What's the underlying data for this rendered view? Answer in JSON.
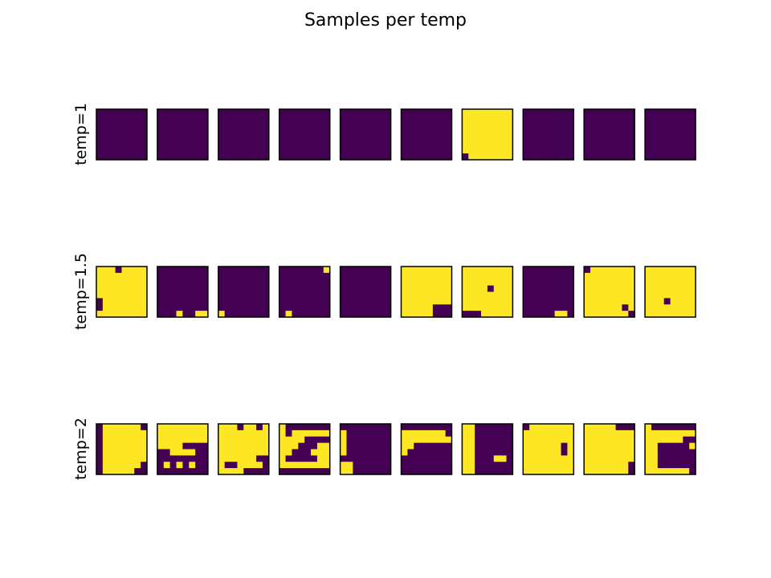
{
  "chart_data": {
    "type": "heatmap",
    "title": "Samples per temp",
    "grid_size": 8,
    "colors": {
      "0": "#440154",
      "1": "#fde725",
      "frame": "#000000"
    },
    "rows": [
      {
        "label": "temp=1",
        "samples": [
          [
            "00000000",
            "00000000",
            "00000000",
            "00000000",
            "00000000",
            "00000000",
            "00000000",
            "00000000"
          ],
          [
            "00000000",
            "00000000",
            "00000000",
            "00000000",
            "00000000",
            "00000000",
            "00000000",
            "00000000"
          ],
          [
            "00000000",
            "00000000",
            "00000000",
            "00000000",
            "00000000",
            "00000000",
            "00000000",
            "00000000"
          ],
          [
            "00000000",
            "00000000",
            "00000000",
            "00000000",
            "00000000",
            "00000000",
            "00000000",
            "00000000"
          ],
          [
            "00000000",
            "00000000",
            "00000000",
            "00000000",
            "00000000",
            "00000000",
            "00000000",
            "00000000"
          ],
          [
            "00000000",
            "00000000",
            "00000000",
            "00000000",
            "00000000",
            "00000000",
            "00000000",
            "00000000"
          ],
          [
            "11111111",
            "11111111",
            "11111111",
            "11111111",
            "11111111",
            "11111111",
            "11111111",
            "01111111"
          ],
          [
            "00000000",
            "00000000",
            "00000000",
            "00000000",
            "00000000",
            "00000000",
            "00000000",
            "00000000"
          ],
          [
            "00000000",
            "00000000",
            "00000000",
            "00000000",
            "00000000",
            "00000000",
            "00000000",
            "00000000"
          ],
          [
            "00000000",
            "00000000",
            "00000000",
            "00000000",
            "00000000",
            "00000000",
            "00000000",
            "00000000"
          ]
        ]
      },
      {
        "label": "temp=1.5",
        "samples": [
          [
            "11101111",
            "11111111",
            "11111111",
            "11111111",
            "11111111",
            "01111111",
            "01111111",
            "11111111"
          ],
          [
            "00000000",
            "00000000",
            "00000000",
            "00000000",
            "00000000",
            "00000000",
            "00000000",
            "00010011"
          ],
          [
            "00000000",
            "00000000",
            "00000000",
            "00000000",
            "00000000",
            "00000000",
            "00000000",
            "10000000"
          ],
          [
            "00000001",
            "00000000",
            "00000000",
            "00000000",
            "00000000",
            "00000000",
            "00000000",
            "01000000"
          ],
          [
            "00000000",
            "00000000",
            "00000000",
            "00000000",
            "00000000",
            "00000000",
            "00000000",
            "00000000"
          ],
          [
            "11111111",
            "11111111",
            "11111111",
            "11111111",
            "11111111",
            "11111111",
            "11111000",
            "11111000"
          ],
          [
            "11111111",
            "11111111",
            "11111111",
            "11110111",
            "11111111",
            "11111111",
            "11111111",
            "00011111"
          ],
          [
            "00000000",
            "00000000",
            "00000000",
            "00000000",
            "00000000",
            "00000000",
            "00000000",
            "00000110"
          ],
          [
            "01111111",
            "11111111",
            "11111111",
            "11111111",
            "11111111",
            "11111111",
            "11111101",
            "11111110"
          ],
          [
            "11111111",
            "11111111",
            "11111111",
            "11111111",
            "11111111",
            "11101111",
            "11111111",
            "11111111"
          ]
        ]
      },
      {
        "label": "temp=2",
        "samples": [
          [
            "01111110",
            "01111111",
            "01111111",
            "01111111",
            "01111111",
            "01111111",
            "01111110",
            "01111100"
          ],
          [
            "11111111",
            "11111111",
            "11111111",
            "11110000",
            "00111100",
            "00000000",
            "01010100",
            "00000000"
          ],
          [
            "11101101",
            "11111111",
            "11111111",
            "11111111",
            "11111111",
            "11111100",
            "10011110",
            "11110000"
          ],
          [
            "10000000",
            "10111111",
            "11110000",
            "11100011",
            "11000111",
            "10000011",
            "11111111",
            "00000000"
          ],
          [
            "00000000",
            "10000000",
            "10000000",
            "10000000",
            "10000000",
            "00000000",
            "11000000",
            "11000000"
          ],
          [
            "00000000",
            "11111110",
            "11111111",
            "11000000",
            "10000000",
            "00000000",
            "00000000",
            "00000000"
          ],
          [
            "11000000",
            "11000000",
            "11000000",
            "11000000",
            "11000000",
            "11000110",
            "11000000",
            "11000000"
          ],
          [
            "01111111",
            "11111111",
            "11111111",
            "11111101",
            "11111101",
            "11111111",
            "11111111",
            "11111111"
          ],
          [
            "11111000",
            "11111111",
            "11111111",
            "11111111",
            "11111111",
            "11111111",
            "11111110",
            "11111110"
          ],
          [
            "10000000",
            "11111111",
            "11111100",
            "11000001",
            "11000000",
            "11000000",
            "11000000",
            "11111110"
          ]
        ]
      }
    ]
  }
}
